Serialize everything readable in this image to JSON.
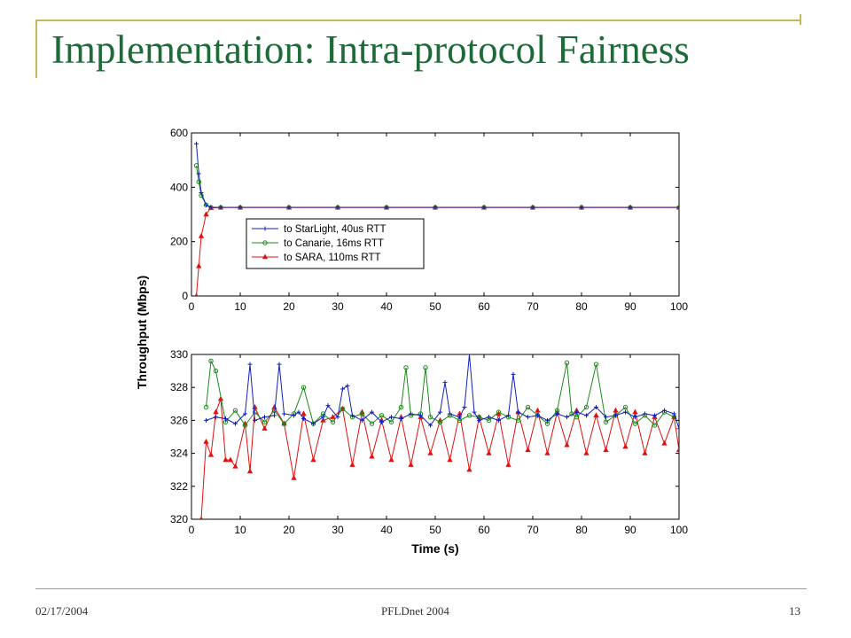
{
  "slide": {
    "title": "Implementation: Intra-protocol Fairness",
    "footer_date": "02/17/2004",
    "footer_center": "PFLDnet 2004",
    "page_number": "13"
  },
  "colors": {
    "title": "#1e6b3a",
    "accent_lines": "#c9b85a",
    "starlight": "#1020c0",
    "canarie": "#1a8a1a",
    "sara": "#e01010"
  },
  "chart_data": [
    {
      "type": "line",
      "panel": "top",
      "xlabel": "",
      "ylabel": "Throughput (Mbps)",
      "xlim": [
        0,
        100
      ],
      "ylim": [
        0,
        600
      ],
      "xticks": [
        0,
        10,
        20,
        30,
        40,
        50,
        60,
        70,
        80,
        90,
        100
      ],
      "yticks": [
        0,
        200,
        400,
        600
      ],
      "grid": false,
      "legend_position": "center-left",
      "series": [
        {
          "name": "to StarLight, 40us RTT",
          "color": "#1020c0",
          "marker": "plus",
          "x": [
            1,
            1.5,
            2,
            3,
            4,
            6,
            10,
            20,
            30,
            40,
            50,
            60,
            70,
            80,
            90,
            100
          ],
          "y": [
            560,
            450,
            380,
            335,
            326,
            326,
            326,
            326,
            326,
            326,
            326,
            326,
            326,
            326,
            326,
            326
          ]
        },
        {
          "name": "to Canarie, 16ms RTT",
          "color": "#1a8a1a",
          "marker": "circle",
          "x": [
            1,
            1.5,
            2,
            3,
            4,
            6,
            10,
            20,
            30,
            40,
            50,
            60,
            70,
            80,
            90,
            100
          ],
          "y": [
            480,
            420,
            370,
            335,
            326,
            326,
            326,
            326,
            326,
            326,
            326,
            326,
            326,
            326,
            326,
            326
          ]
        },
        {
          "name": "to SARA, 110ms RTT",
          "color": "#e01010",
          "marker": "triangle",
          "x": [
            1,
            1.5,
            2,
            3,
            4,
            6,
            10,
            20,
            30,
            40,
            50,
            60,
            70,
            80,
            90,
            100
          ],
          "y": [
            0,
            110,
            220,
            300,
            324,
            325,
            325,
            325,
            325,
            325,
            325,
            325,
            325,
            325,
            325,
            325
          ]
        }
      ]
    },
    {
      "type": "line",
      "panel": "bottom",
      "xlabel": "Time (s)",
      "ylabel": "Throughput (Mbps)",
      "xlim": [
        0,
        100
      ],
      "ylim": [
        320,
        330
      ],
      "xticks": [
        0,
        10,
        20,
        30,
        40,
        50,
        60,
        70,
        80,
        90,
        100
      ],
      "yticks": [
        320,
        322,
        324,
        326,
        328,
        330
      ],
      "grid": false,
      "series": [
        {
          "name": "to StarLight, 40us RTT",
          "color": "#1020c0",
          "marker": "plus",
          "x": [
            3,
            5,
            7,
            9,
            11,
            12,
            13,
            15,
            17,
            18,
            19,
            21,
            22,
            23,
            25,
            27,
            28,
            30,
            31,
            32,
            33,
            35,
            37,
            39,
            41,
            43,
            45,
            47,
            49,
            51,
            52,
            53,
            55,
            56,
            57,
            58,
            59,
            61,
            63,
            65,
            66,
            67,
            69,
            71,
            73,
            75,
            77,
            79,
            81,
            83,
            85,
            87,
            89,
            91,
            93,
            95,
            97,
            99,
            100
          ],
          "y": [
            326.0,
            326.2,
            326.1,
            325.8,
            326.4,
            329.4,
            326.0,
            326.2,
            326.3,
            329.4,
            326.4,
            326.3,
            326.5,
            326.1,
            325.8,
            326.2,
            326.9,
            326.2,
            327.9,
            328.1,
            326.3,
            326.0,
            326.5,
            325.9,
            326.2,
            326.1,
            326.4,
            326.3,
            325.7,
            326.5,
            328.3,
            326.4,
            326.2,
            326.8,
            330.0,
            326.5,
            326.0,
            326.2,
            326.0,
            326.3,
            328.8,
            326.5,
            326.2,
            326.3,
            326.0,
            326.4,
            326.2,
            326.5,
            326.3,
            326.8,
            326.2,
            326.3,
            326.5,
            326.2,
            326.4,
            326.3,
            326.6,
            326.4,
            325.5
          ]
        },
        {
          "name": "to Canarie, 16ms RTT",
          "color": "#1a8a1a",
          "marker": "circle",
          "x": [
            3,
            4,
            5,
            7,
            9,
            11,
            13,
            15,
            17,
            19,
            21,
            23,
            25,
            27,
            29,
            31,
            33,
            35,
            37,
            39,
            41,
            43,
            44,
            45,
            47,
            48,
            49,
            51,
            53,
            55,
            57,
            59,
            61,
            63,
            65,
            67,
            69,
            71,
            73,
            75,
            77,
            78,
            79,
            81,
            83,
            85,
            87,
            89,
            91,
            93,
            95,
            97,
            99
          ],
          "y": [
            326.8,
            329.6,
            329.0,
            325.9,
            326.6,
            325.7,
            326.5,
            325.9,
            326.6,
            325.8,
            326.4,
            328.0,
            325.8,
            326.4,
            325.9,
            326.7,
            326.2,
            326.4,
            325.8,
            326.3,
            325.9,
            326.8,
            329.2,
            326.3,
            326.4,
            329.2,
            326.2,
            325.9,
            326.3,
            326.0,
            326.3,
            326.2,
            326.0,
            326.5,
            326.2,
            326.0,
            326.8,
            326.3,
            325.8,
            326.6,
            329.5,
            326.4,
            326.2,
            326.8,
            329.4,
            325.9,
            326.3,
            326.8,
            325.8,
            326.3,
            325.7,
            326.5,
            326.2
          ]
        },
        {
          "name": "to SARA, 110ms RTT",
          "color": "#e01010",
          "marker": "triangle",
          "x": [
            2,
            3,
            4,
            5,
            6,
            7,
            8,
            9,
            11,
            12,
            13,
            15,
            17,
            19,
            21,
            23,
            25,
            27,
            29,
            31,
            33,
            35,
            37,
            39,
            41,
            43,
            45,
            47,
            49,
            51,
            53,
            55,
            57,
            59,
            61,
            63,
            65,
            67,
            69,
            71,
            73,
            75,
            77,
            79,
            81,
            83,
            85,
            87,
            89,
            91,
            93,
            95,
            97,
            99,
            100
          ],
          "y": [
            320.0,
            324.7,
            323.9,
            326.5,
            327.3,
            323.6,
            323.6,
            323.2,
            325.8,
            322.9,
            326.8,
            325.5,
            326.8,
            325.8,
            322.5,
            326.4,
            323.6,
            326.0,
            326.2,
            326.7,
            323.3,
            326.5,
            323.8,
            326.0,
            323.6,
            326.2,
            323.3,
            326.2,
            324.0,
            326.0,
            323.6,
            326.4,
            323.0,
            326.2,
            324.0,
            326.4,
            323.3,
            326.5,
            324.2,
            326.6,
            324.0,
            326.5,
            324.5,
            326.6,
            324.0,
            326.3,
            324.2,
            326.6,
            324.4,
            326.5,
            324.0,
            326.2,
            324.6,
            326.2,
            324.2
          ]
        }
      ]
    }
  ]
}
